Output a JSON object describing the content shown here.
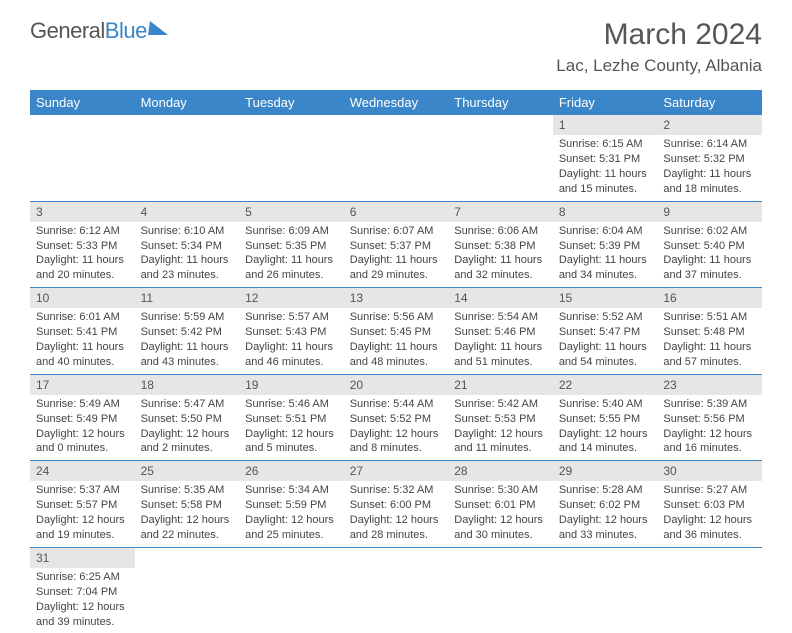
{
  "logo": {
    "part1": "General",
    "part2": "Blue"
  },
  "title": "March 2024",
  "location": "Lac, Lezhe County, Albania",
  "colors": {
    "header_bg": "#3a86c8",
    "header_fg": "#ffffff",
    "daynum_bg": "#e6e6e6",
    "border": "#3a86c8",
    "text": "#444444"
  },
  "weekdays": [
    "Sunday",
    "Monday",
    "Tuesday",
    "Wednesday",
    "Thursday",
    "Friday",
    "Saturday"
  ],
  "layout": {
    "first_weekday_index": 5,
    "days_in_month": 31
  },
  "days": {
    "1": {
      "sunrise": "Sunrise: 6:15 AM",
      "sunset": "Sunset: 5:31 PM",
      "daylight": "Daylight: 11 hours and 15 minutes."
    },
    "2": {
      "sunrise": "Sunrise: 6:14 AM",
      "sunset": "Sunset: 5:32 PM",
      "daylight": "Daylight: 11 hours and 18 minutes."
    },
    "3": {
      "sunrise": "Sunrise: 6:12 AM",
      "sunset": "Sunset: 5:33 PM",
      "daylight": "Daylight: 11 hours and 20 minutes."
    },
    "4": {
      "sunrise": "Sunrise: 6:10 AM",
      "sunset": "Sunset: 5:34 PM",
      "daylight": "Daylight: 11 hours and 23 minutes."
    },
    "5": {
      "sunrise": "Sunrise: 6:09 AM",
      "sunset": "Sunset: 5:35 PM",
      "daylight": "Daylight: 11 hours and 26 minutes."
    },
    "6": {
      "sunrise": "Sunrise: 6:07 AM",
      "sunset": "Sunset: 5:37 PM",
      "daylight": "Daylight: 11 hours and 29 minutes."
    },
    "7": {
      "sunrise": "Sunrise: 6:06 AM",
      "sunset": "Sunset: 5:38 PM",
      "daylight": "Daylight: 11 hours and 32 minutes."
    },
    "8": {
      "sunrise": "Sunrise: 6:04 AM",
      "sunset": "Sunset: 5:39 PM",
      "daylight": "Daylight: 11 hours and 34 minutes."
    },
    "9": {
      "sunrise": "Sunrise: 6:02 AM",
      "sunset": "Sunset: 5:40 PM",
      "daylight": "Daylight: 11 hours and 37 minutes."
    },
    "10": {
      "sunrise": "Sunrise: 6:01 AM",
      "sunset": "Sunset: 5:41 PM",
      "daylight": "Daylight: 11 hours and 40 minutes."
    },
    "11": {
      "sunrise": "Sunrise: 5:59 AM",
      "sunset": "Sunset: 5:42 PM",
      "daylight": "Daylight: 11 hours and 43 minutes."
    },
    "12": {
      "sunrise": "Sunrise: 5:57 AM",
      "sunset": "Sunset: 5:43 PM",
      "daylight": "Daylight: 11 hours and 46 minutes."
    },
    "13": {
      "sunrise": "Sunrise: 5:56 AM",
      "sunset": "Sunset: 5:45 PM",
      "daylight": "Daylight: 11 hours and 48 minutes."
    },
    "14": {
      "sunrise": "Sunrise: 5:54 AM",
      "sunset": "Sunset: 5:46 PM",
      "daylight": "Daylight: 11 hours and 51 minutes."
    },
    "15": {
      "sunrise": "Sunrise: 5:52 AM",
      "sunset": "Sunset: 5:47 PM",
      "daylight": "Daylight: 11 hours and 54 minutes."
    },
    "16": {
      "sunrise": "Sunrise: 5:51 AM",
      "sunset": "Sunset: 5:48 PM",
      "daylight": "Daylight: 11 hours and 57 minutes."
    },
    "17": {
      "sunrise": "Sunrise: 5:49 AM",
      "sunset": "Sunset: 5:49 PM",
      "daylight": "Daylight: 12 hours and 0 minutes."
    },
    "18": {
      "sunrise": "Sunrise: 5:47 AM",
      "sunset": "Sunset: 5:50 PM",
      "daylight": "Daylight: 12 hours and 2 minutes."
    },
    "19": {
      "sunrise": "Sunrise: 5:46 AM",
      "sunset": "Sunset: 5:51 PM",
      "daylight": "Daylight: 12 hours and 5 minutes."
    },
    "20": {
      "sunrise": "Sunrise: 5:44 AM",
      "sunset": "Sunset: 5:52 PM",
      "daylight": "Daylight: 12 hours and 8 minutes."
    },
    "21": {
      "sunrise": "Sunrise: 5:42 AM",
      "sunset": "Sunset: 5:53 PM",
      "daylight": "Daylight: 12 hours and 11 minutes."
    },
    "22": {
      "sunrise": "Sunrise: 5:40 AM",
      "sunset": "Sunset: 5:55 PM",
      "daylight": "Daylight: 12 hours and 14 minutes."
    },
    "23": {
      "sunrise": "Sunrise: 5:39 AM",
      "sunset": "Sunset: 5:56 PM",
      "daylight": "Daylight: 12 hours and 16 minutes."
    },
    "24": {
      "sunrise": "Sunrise: 5:37 AM",
      "sunset": "Sunset: 5:57 PM",
      "daylight": "Daylight: 12 hours and 19 minutes."
    },
    "25": {
      "sunrise": "Sunrise: 5:35 AM",
      "sunset": "Sunset: 5:58 PM",
      "daylight": "Daylight: 12 hours and 22 minutes."
    },
    "26": {
      "sunrise": "Sunrise: 5:34 AM",
      "sunset": "Sunset: 5:59 PM",
      "daylight": "Daylight: 12 hours and 25 minutes."
    },
    "27": {
      "sunrise": "Sunrise: 5:32 AM",
      "sunset": "Sunset: 6:00 PM",
      "daylight": "Daylight: 12 hours and 28 minutes."
    },
    "28": {
      "sunrise": "Sunrise: 5:30 AM",
      "sunset": "Sunset: 6:01 PM",
      "daylight": "Daylight: 12 hours and 30 minutes."
    },
    "29": {
      "sunrise": "Sunrise: 5:28 AM",
      "sunset": "Sunset: 6:02 PM",
      "daylight": "Daylight: 12 hours and 33 minutes."
    },
    "30": {
      "sunrise": "Sunrise: 5:27 AM",
      "sunset": "Sunset: 6:03 PM",
      "daylight": "Daylight: 12 hours and 36 minutes."
    },
    "31": {
      "sunrise": "Sunrise: 6:25 AM",
      "sunset": "Sunset: 7:04 PM",
      "daylight": "Daylight: 12 hours and 39 minutes."
    }
  }
}
